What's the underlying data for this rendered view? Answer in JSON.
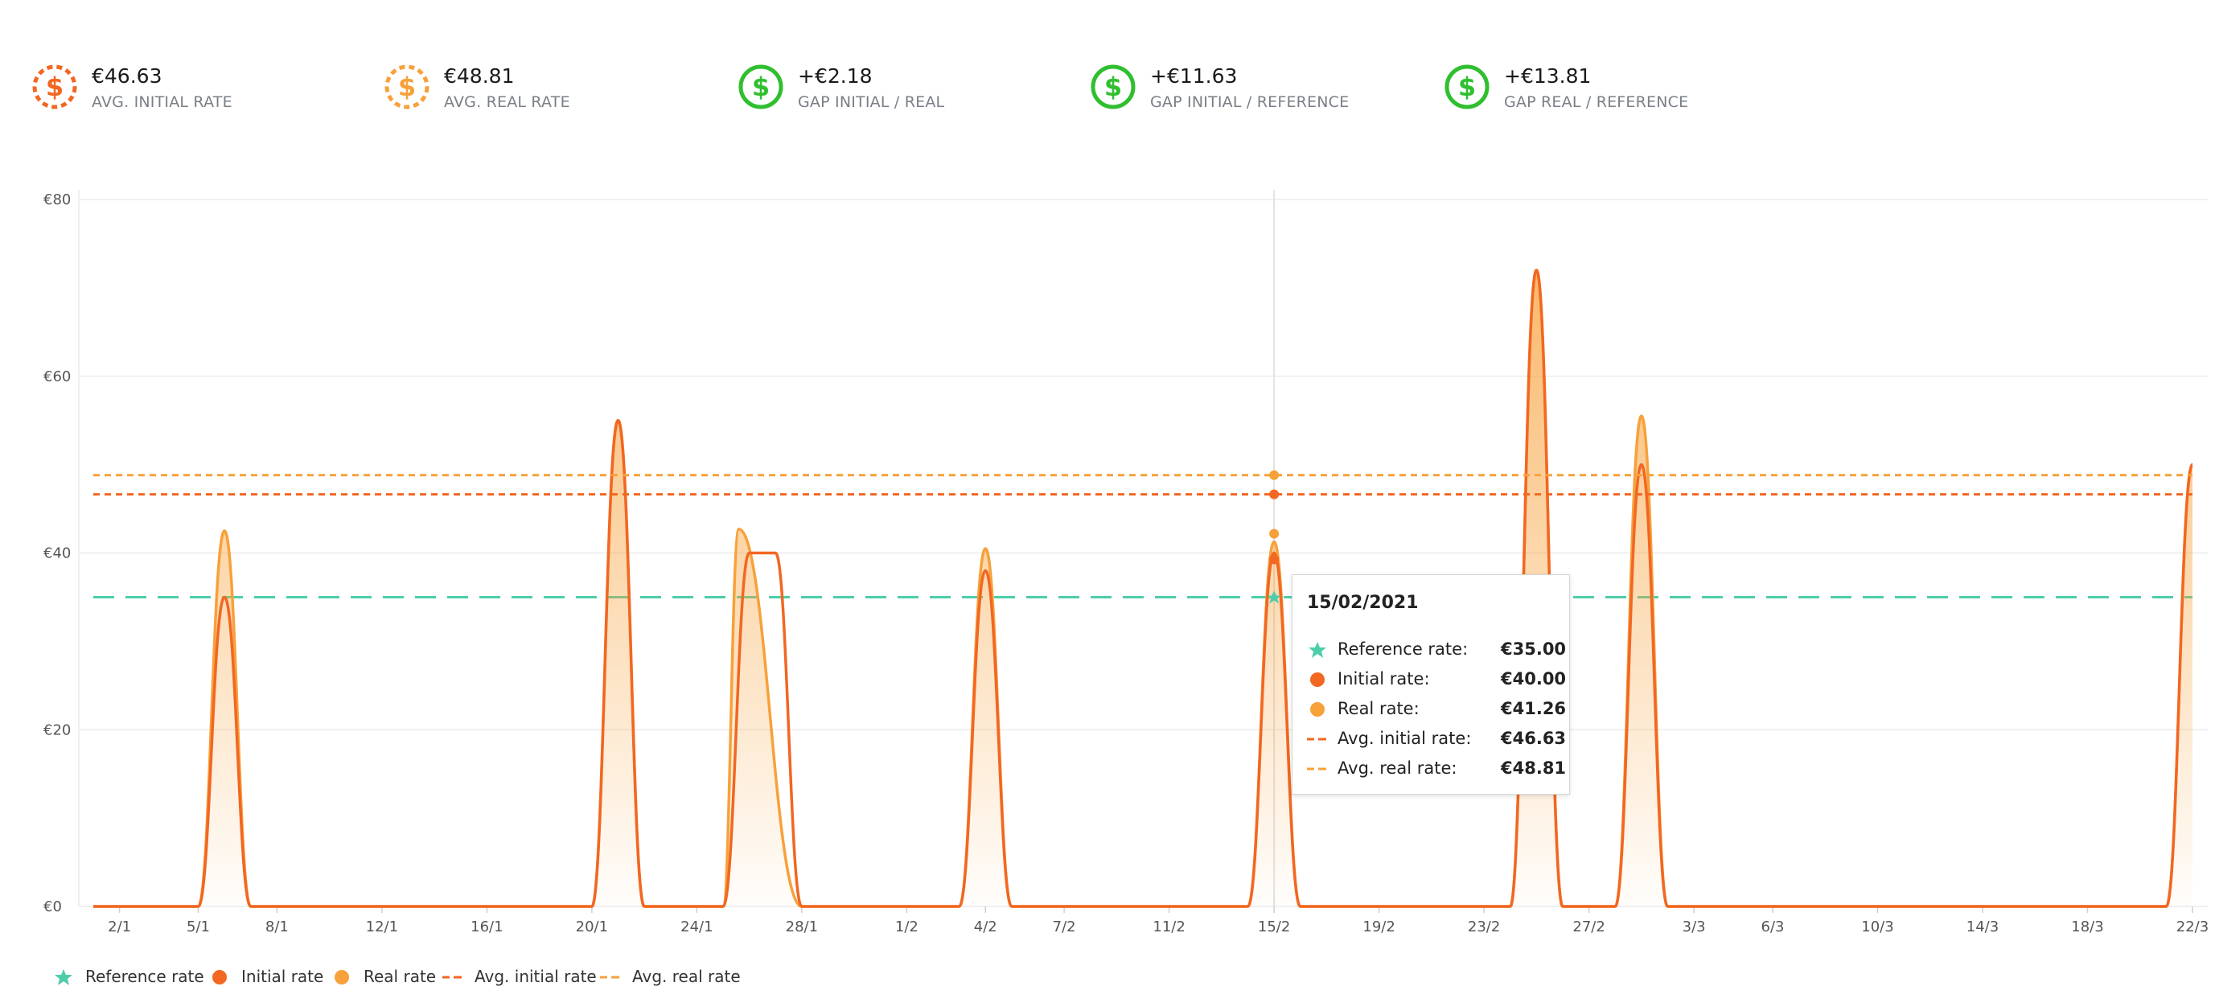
{
  "kpis": [
    {
      "value": "€46.63",
      "label": "AVG. INITIAL RATE",
      "icon": "dollar-dashed-circle-icon",
      "color": "#f26722"
    },
    {
      "value": "€48.81",
      "label": "AVG. REAL RATE",
      "icon": "dollar-dashed-circle-icon",
      "color": "#f7a13a"
    },
    {
      "value": "+€2.18",
      "label": "GAP INITIAL / REAL",
      "icon": "dollar-circle-icon",
      "color": "#2fbf2f"
    },
    {
      "value": "+€11.63",
      "label": "GAP INITIAL / REFERENCE",
      "icon": "dollar-circle-icon",
      "color": "#2fbf2f"
    },
    {
      "value": "+€13.81",
      "label": "GAP REAL / REFERENCE",
      "icon": "dollar-circle-icon",
      "color": "#2fbf2f"
    }
  ],
  "chart_data": {
    "type": "area",
    "y_ticks": [
      "€0",
      "€20",
      "€40",
      "€60",
      "€80"
    ],
    "ylim": [
      0,
      80
    ],
    "xlim": [
      1,
      81
    ],
    "x_ticks": [
      {
        "label": "2/1",
        "day": 2
      },
      {
        "label": "5/1",
        "day": 5
      },
      {
        "label": "8/1",
        "day": 8
      },
      {
        "label": "12/1",
        "day": 12
      },
      {
        "label": "16/1",
        "day": 16
      },
      {
        "label": "20/1",
        "day": 20
      },
      {
        "label": "24/1",
        "day": 24
      },
      {
        "label": "28/1",
        "day": 28
      },
      {
        "label": "1/2",
        "day": 32
      },
      {
        "label": "4/2",
        "day": 35
      },
      {
        "label": "7/2",
        "day": 38
      },
      {
        "label": "11/2",
        "day": 42
      },
      {
        "label": "15/2",
        "day": 46
      },
      {
        "label": "19/2",
        "day": 50
      },
      {
        "label": "23/2",
        "day": 54
      },
      {
        "label": "27/2",
        "day": 58
      },
      {
        "label": "3/3",
        "day": 62
      },
      {
        "label": "6/3",
        "day": 65
      },
      {
        "label": "10/3",
        "day": 69
      },
      {
        "label": "14/3",
        "day": 73
      },
      {
        "label": "18/3",
        "day": 77
      },
      {
        "label": "22/3",
        "day": 81
      }
    ],
    "series": [
      {
        "name": "Reference rate",
        "kind": "dashed-line",
        "color": "#4ecdab",
        "value": 35
      },
      {
        "name": "Initial rate",
        "kind": "line",
        "color": "#f26722",
        "peaks": [
          {
            "start": 5,
            "peak": 6,
            "end": 7,
            "value": 35
          },
          {
            "start": 20,
            "peak": 21,
            "end": 22,
            "value": 55
          },
          {
            "start": 25,
            "peak": 26,
            "plateau_end": 27,
            "end": 28,
            "value": 40
          },
          {
            "start": 34,
            "peak": 35,
            "end": 36,
            "value": 38
          },
          {
            "start": 45,
            "peak": 46,
            "end": 47,
            "value": 40
          },
          {
            "start": 55,
            "peak": 56,
            "end": 57,
            "value": 72
          },
          {
            "start": 59,
            "peak": 60,
            "end": 61,
            "value": 50
          },
          {
            "start": 80,
            "peak": 81,
            "end": 81,
            "value": 50
          }
        ]
      },
      {
        "name": "Real rate",
        "kind": "area",
        "color": "#f7a13a",
        "peaks": [
          {
            "start": 5,
            "peak": 6,
            "end": 7,
            "value": 42.5
          },
          {
            "start": 20,
            "peak": 21,
            "end": 22,
            "value": 55
          },
          {
            "start": 25,
            "peak": 25.6,
            "end": 28,
            "value": 42.7
          },
          {
            "start": 34,
            "peak": 35,
            "end": 36,
            "value": 40.5
          },
          {
            "start": 45,
            "peak": 46,
            "end": 47,
            "value": 41.26
          },
          {
            "start": 55,
            "peak": 56,
            "end": 57,
            "value": 72
          },
          {
            "start": 59,
            "peak": 60,
            "end": 61,
            "value": 55.5
          },
          {
            "start": 80,
            "peak": 81,
            "end": 81,
            "value": 50
          }
        ]
      },
      {
        "name": "Avg. initial rate",
        "kind": "dotted-line",
        "color": "#f26722",
        "value": 46.63
      },
      {
        "name": "Avg. real rate",
        "kind": "dotted-line",
        "color": "#f7a13a",
        "value": 48.81
      }
    ],
    "crosshair_day": 46,
    "tooltip": {
      "date": "15/02/2021",
      "rows": [
        {
          "name": "Reference rate:",
          "value": "€35.00",
          "symbol": "star",
          "color": "#4ecdab"
        },
        {
          "name": "Initial rate:",
          "value": "€40.00",
          "symbol": "dot",
          "color": "#f26722"
        },
        {
          "name": "Real rate:",
          "value": "€41.26",
          "symbol": "dot",
          "color": "#f7a13a"
        },
        {
          "name": "Avg. initial rate:",
          "value": "€46.63",
          "symbol": "dash",
          "color": "#f26722"
        },
        {
          "name": "Avg. real rate:",
          "value": "€48.81",
          "symbol": "dash",
          "color": "#f7a13a"
        }
      ]
    },
    "legend": [
      {
        "name": "Reference rate",
        "symbol": "star",
        "color": "#4ecdab"
      },
      {
        "name": "Initial rate",
        "symbol": "dot",
        "color": "#f26722"
      },
      {
        "name": "Real rate",
        "symbol": "dot",
        "color": "#f7a13a"
      },
      {
        "name": "Avg. initial rate",
        "symbol": "dash",
        "color": "#f26722"
      },
      {
        "name": "Avg. real rate",
        "symbol": "dash",
        "color": "#f7a13a"
      }
    ]
  }
}
